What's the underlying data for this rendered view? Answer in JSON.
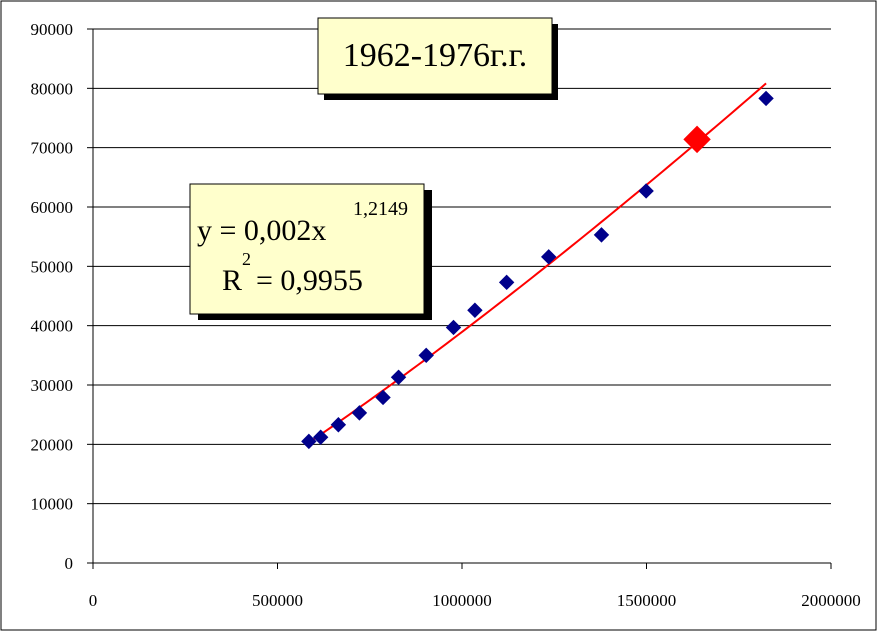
{
  "chart_data": {
    "type": "scatter",
    "title": "1962-1976г.г.",
    "xlim": [
      0,
      2000000
    ],
    "ylim": [
      0,
      90000
    ],
    "x_ticks": [
      0,
      500000,
      1000000,
      1500000,
      2000000
    ],
    "y_ticks": [
      0,
      10000,
      20000,
      30000,
      40000,
      50000,
      60000,
      70000,
      80000,
      90000
    ],
    "x_tick_labels": [
      "0",
      "500000",
      "1000000",
      "1500000",
      "2000000"
    ],
    "y_tick_labels": [
      "0",
      "10000",
      "20000",
      "30000",
      "40000",
      "50000",
      "60000",
      "70000",
      "80000",
      "90000"
    ],
    "grid": "horizontal",
    "series": [
      {
        "marker": "diamond",
        "color": "#00008b",
        "points": [
          {
            "x": 585000,
            "y": 20500
          },
          {
            "x": 617000,
            "y": 21200
          },
          {
            "x": 665000,
            "y": 23300
          },
          {
            "x": 722000,
            "y": 25300
          },
          {
            "x": 786000,
            "y": 27900
          },
          {
            "x": 828000,
            "y": 31300
          },
          {
            "x": 903000,
            "y": 35000
          },
          {
            "x": 977000,
            "y": 39700
          },
          {
            "x": 1035000,
            "y": 42600
          },
          {
            "x": 1121000,
            "y": 47300
          },
          {
            "x": 1235000,
            "y": 51600
          },
          {
            "x": 1378000,
            "y": 55300
          },
          {
            "x": 1499000,
            "y": 62700
          },
          {
            "x": 1824000,
            "y": 78300
          }
        ]
      },
      {
        "marker": "diamond-large",
        "color": "#ff0000",
        "points": [
          {
            "x": 1637000,
            "y": 71400
          }
        ]
      }
    ],
    "trendline": {
      "type": "power",
      "coefficient": 0.002,
      "exponent": 1.2149,
      "x_range": [
        585000,
        1824000
      ],
      "color": "#ff0000"
    },
    "annotations": {
      "title_box": "1962-1976г.г.",
      "equation_prefix": "y = 0,002x",
      "equation_exponent": "1,2149",
      "r2_prefix": "R",
      "r2_exponent": "2",
      "r2_suffix": " = 0,9955",
      "box_fill": "#ffffcc"
    }
  }
}
